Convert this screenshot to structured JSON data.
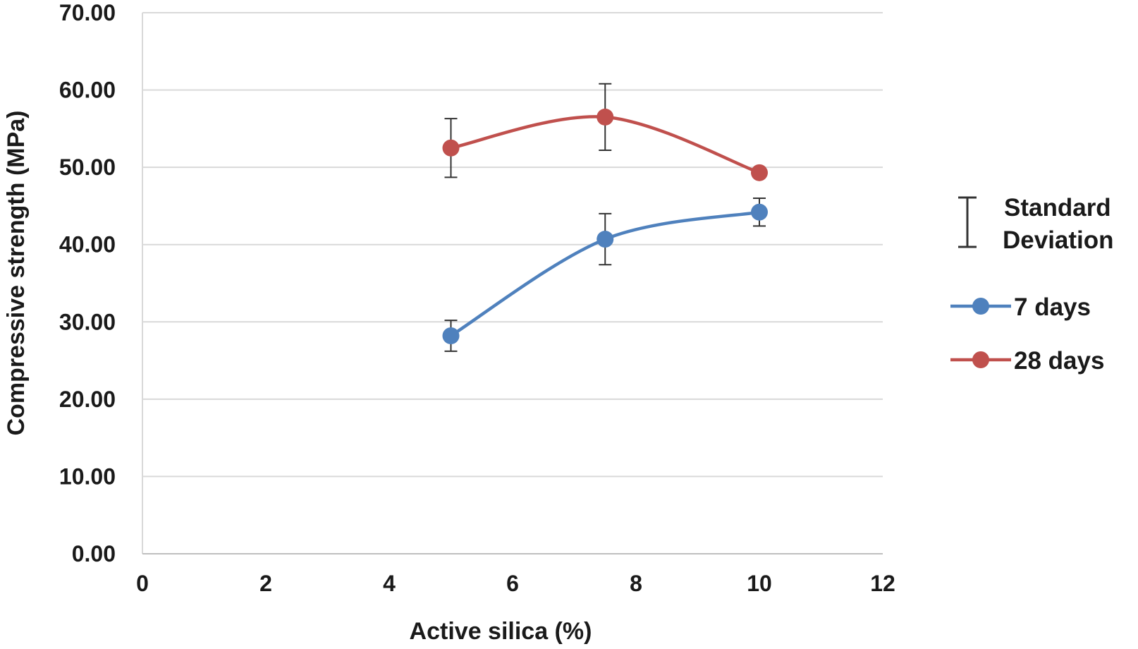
{
  "chart_data": {
    "type": "line",
    "xlabel": "Active silica (%)",
    "ylabel": "Compressive strength (MPa)",
    "xlim": [
      0,
      12
    ],
    "ylim": [
      0,
      70
    ],
    "x_ticks": [
      0,
      2,
      4,
      6,
      8,
      10,
      12
    ],
    "x_tick_labels": [
      "0",
      "2",
      "4",
      "6",
      "8",
      "10",
      "12"
    ],
    "y_ticks": [
      0,
      10,
      20,
      30,
      40,
      50,
      60,
      70
    ],
    "y_tick_labels": [
      "0.00",
      "10.00",
      "20.00",
      "30.00",
      "40.00",
      "50.00",
      "60.00",
      "70.00"
    ],
    "grid": "horizontal",
    "smoothed": true,
    "legend_position": "right",
    "error_bar_legend": [
      "Standard",
      "Deviation"
    ],
    "series": [
      {
        "name": "7 days",
        "color": "#4f81bd",
        "x": [
          5,
          7.5,
          10
        ],
        "y": [
          28.2,
          40.7,
          44.2
        ],
        "err": [
          2.0,
          3.3,
          1.8
        ]
      },
      {
        "name": "28 days",
        "color": "#c0504d",
        "x": [
          5,
          7.5,
          10
        ],
        "y": [
          52.5,
          56.5,
          49.3
        ],
        "err": [
          3.8,
          4.3,
          0
        ]
      }
    ]
  }
}
